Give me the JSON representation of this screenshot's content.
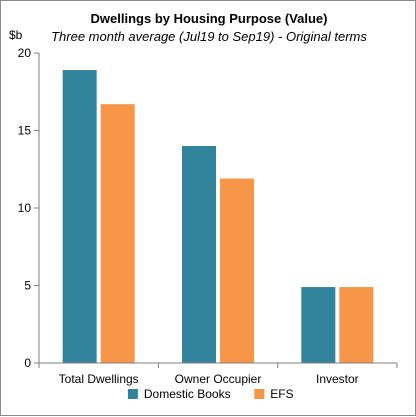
{
  "chart_data": {
    "type": "bar",
    "title": "Dwellings by Housing Purpose (Value)",
    "subtitle": "Three month average (Jul19 to Sep19) - Original terms",
    "ylabel": "$b",
    "ylim": [
      0,
      20
    ],
    "yticks": [
      "0",
      "5",
      "10",
      "15",
      "20"
    ],
    "categories": [
      "Total Dwellings",
      "Owner Occupier",
      "Investor"
    ],
    "series": [
      {
        "name": "Domestic Books",
        "values": [
          18.9,
          14.0,
          4.9
        ],
        "color": "#31849B"
      },
      {
        "name": "EFS",
        "values": [
          16.7,
          11.9,
          4.9
        ],
        "color": "#F79646"
      }
    ],
    "legend_position": "bottom",
    "grid": false
  }
}
